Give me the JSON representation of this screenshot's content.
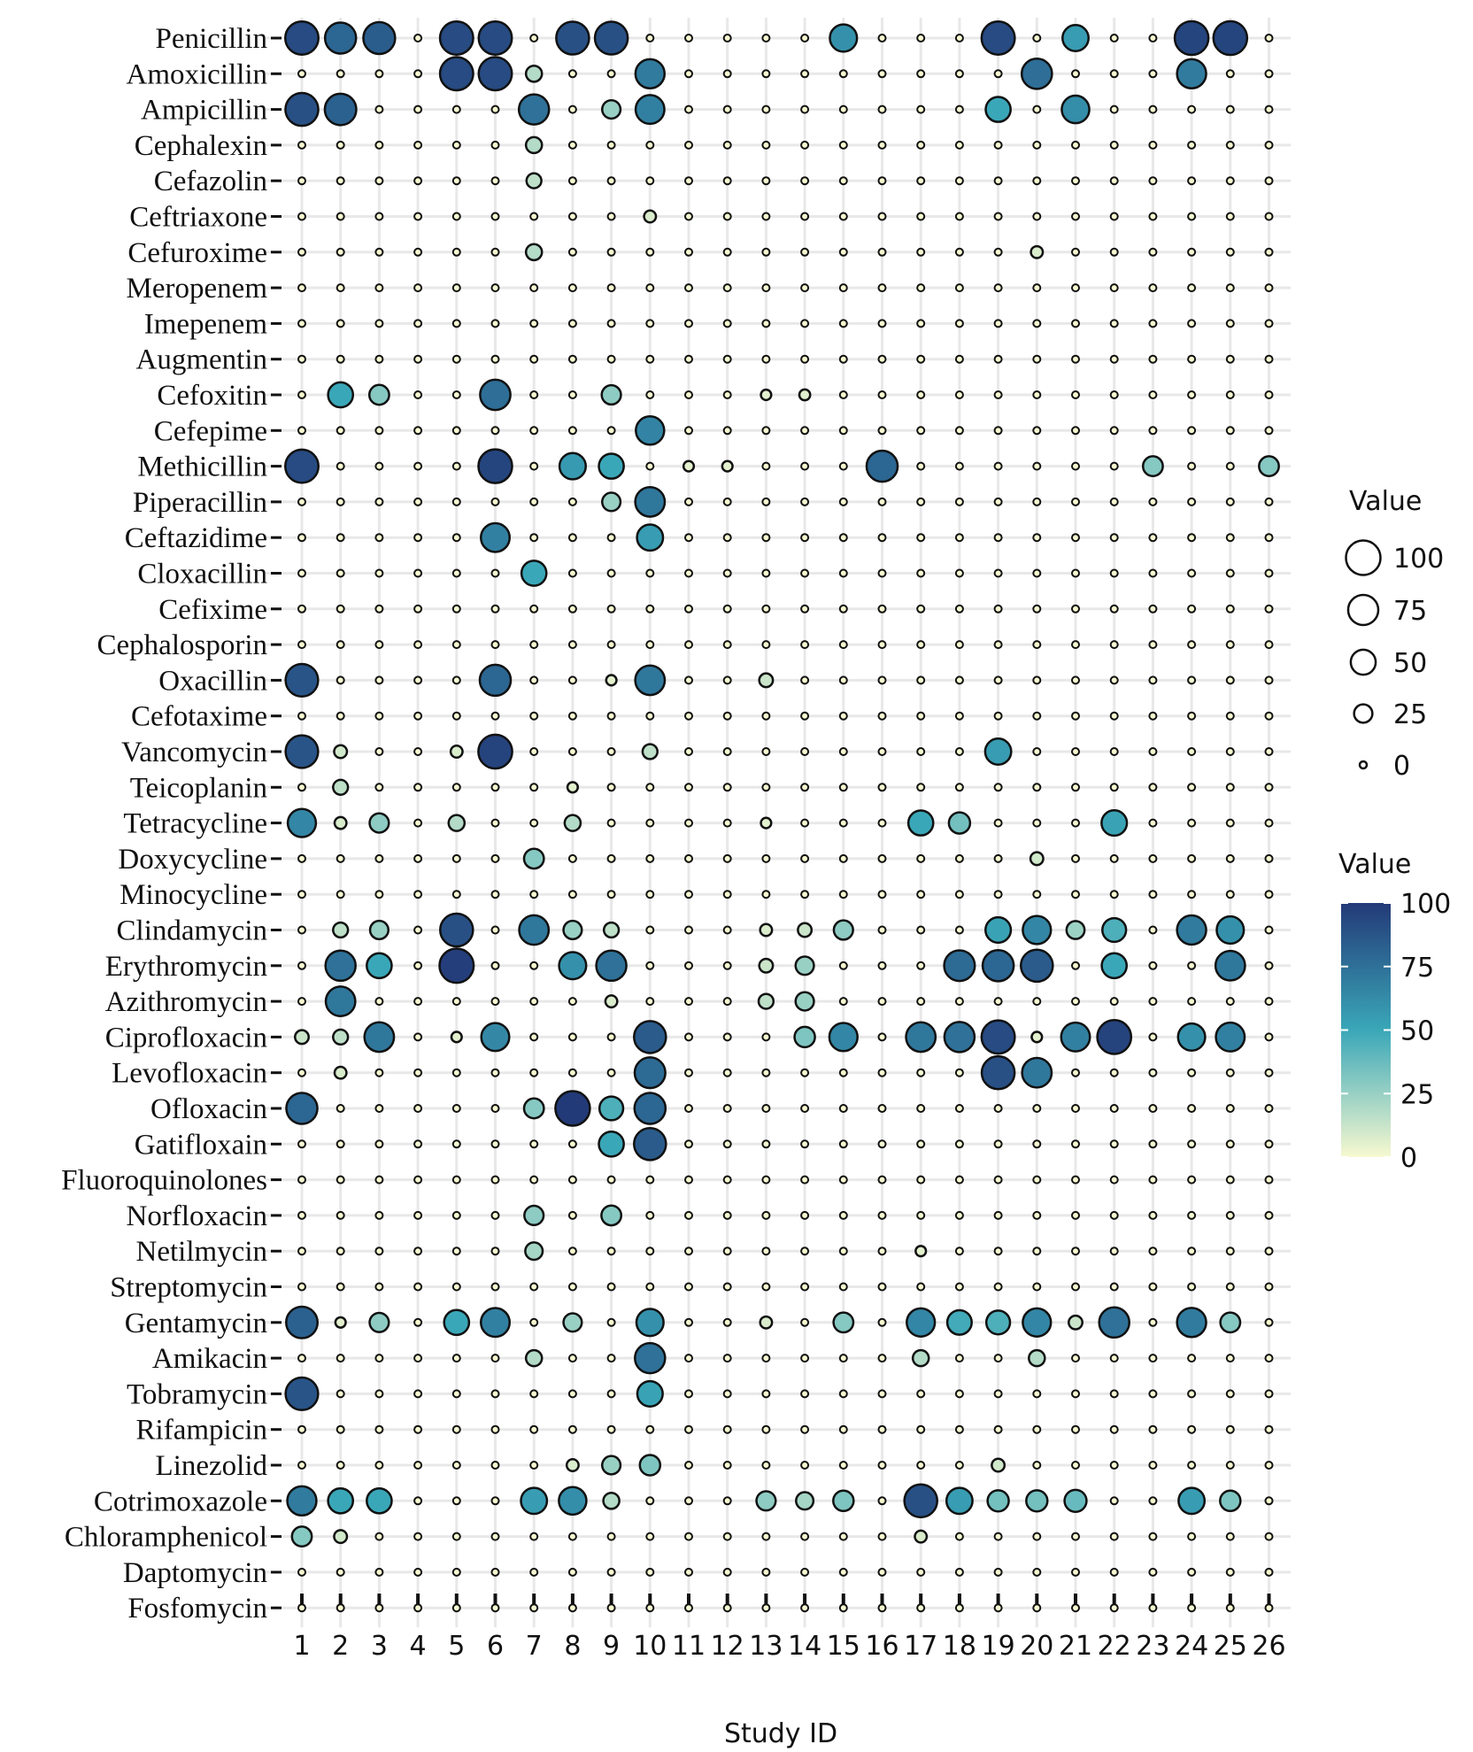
{
  "chart_data": {
    "type": "scatter",
    "subtype": "dot-matrix",
    "title": "",
    "xlabel": "Study ID",
    "ylabel": "",
    "x_categories": [
      "1",
      "2",
      "3",
      "4",
      "5",
      "6",
      "7",
      "8",
      "9",
      "10",
      "11",
      "12",
      "13",
      "14",
      "15",
      "16",
      "17",
      "18",
      "19",
      "20",
      "21",
      "22",
      "23",
      "24",
      "25",
      "26"
    ],
    "y_categories": [
      "Penicillin",
      "Amoxicillin",
      "Ampicillin",
      "Cephalexin",
      "Cefazolin",
      "Ceftriaxone",
      "Cefuroxime",
      "Meropenem",
      "Imepenem",
      "Augmentin",
      "Cefoxitin",
      "Cefepime",
      "Methicillin",
      "Piperacillin",
      "Ceftazidime",
      "Cloxacillin",
      "Cefixime",
      "Cephalosporin",
      "Oxacillin",
      "Cefotaxime",
      "Vancomycin",
      "Teicoplanin",
      "Tetracycline",
      "Doxycycline",
      "Minocycline",
      "Clindamycin",
      "Erythromycin",
      "Azithromycin",
      "Ciprofloxacin",
      "Levofloxacin",
      "Ofloxacin",
      "Gatifloxain",
      "Fluoroquinolones",
      "Norfloxacin",
      "Netilmycin",
      "Streptomycin",
      "Gentamycin",
      "Amikacin",
      "Tobramycin",
      "Rifampicin",
      "Linezolid",
      "Cotrimoxazole",
      "Chloramphenicol",
      "Daptomycin",
      "Fosfomycin"
    ],
    "values": [
      [
        92,
        80,
        84,
        0,
        92,
        92,
        0,
        90,
        90,
        0,
        0,
        0,
        0,
        0,
        60,
        0,
        0,
        0,
        92,
        0,
        55,
        0,
        0,
        95,
        95,
        0
      ],
      [
        0,
        0,
        0,
        0,
        92,
        92,
        18,
        0,
        0,
        70,
        0,
        0,
        0,
        0,
        0,
        0,
        0,
        0,
        0,
        76,
        0,
        0,
        0,
        70,
        0,
        0
      ],
      [
        90,
        82,
        0,
        0,
        0,
        0,
        75,
        0,
        25,
        68,
        0,
        0,
        0,
        0,
        0,
        0,
        0,
        0,
        50,
        0,
        62,
        0,
        0,
        0,
        0,
        0
      ],
      [
        0,
        0,
        0,
        0,
        0,
        0,
        18,
        0,
        0,
        0,
        0,
        0,
        0,
        0,
        0,
        0,
        0,
        0,
        0,
        0,
        0,
        0,
        0,
        0,
        0,
        0
      ],
      [
        0,
        0,
        0,
        0,
        0,
        0,
        15,
        0,
        0,
        0,
        0,
        0,
        0,
        0,
        0,
        0,
        0,
        0,
        0,
        0,
        0,
        0,
        0,
        0,
        0,
        0
      ],
      [
        0,
        0,
        0,
        0,
        0,
        0,
        0,
        0,
        0,
        8,
        0,
        0,
        0,
        0,
        0,
        0,
        0,
        0,
        0,
        0,
        0,
        0,
        0,
        0,
        0,
        0
      ],
      [
        0,
        0,
        0,
        0,
        0,
        0,
        18,
        0,
        0,
        0,
        0,
        0,
        0,
        0,
        0,
        0,
        0,
        0,
        0,
        8,
        0,
        0,
        0,
        0,
        0,
        0
      ],
      [
        0,
        0,
        0,
        0,
        0,
        0,
        0,
        0,
        0,
        0,
        0,
        0,
        0,
        0,
        0,
        0,
        0,
        0,
        0,
        0,
        0,
        0,
        0,
        0,
        0,
        0
      ],
      [
        0,
        0,
        0,
        0,
        0,
        0,
        0,
        0,
        0,
        0,
        0,
        0,
        0,
        0,
        0,
        0,
        0,
        0,
        0,
        0,
        0,
        0,
        0,
        0,
        0,
        0
      ],
      [
        0,
        0,
        0,
        0,
        0,
        0,
        0,
        0,
        0,
        0,
        0,
        0,
        0,
        0,
        0,
        0,
        0,
        0,
        0,
        0,
        0,
        0,
        0,
        0,
        0,
        0
      ],
      [
        0,
        50,
        30,
        0,
        0,
        76,
        0,
        0,
        28,
        0,
        0,
        0,
        5,
        6,
        0,
        0,
        0,
        0,
        0,
        0,
        0,
        0,
        0,
        0,
        0,
        0
      ],
      [
        0,
        0,
        0,
        0,
        0,
        0,
        0,
        0,
        0,
        66,
        0,
        0,
        0,
        0,
        0,
        0,
        0,
        0,
        0,
        0,
        0,
        0,
        0,
        0,
        0,
        0
      ],
      [
        92,
        0,
        0,
        0,
        0,
        95,
        0,
        56,
        50,
        0,
        5,
        5,
        0,
        0,
        0,
        80,
        0,
        0,
        0,
        0,
        0,
        0,
        30,
        0,
        0,
        30
      ],
      [
        0,
        0,
        0,
        0,
        0,
        0,
        0,
        0,
        25,
        72,
        0,
        0,
        0,
        0,
        0,
        0,
        0,
        0,
        0,
        0,
        0,
        0,
        0,
        0,
        0,
        0
      ],
      [
        0,
        0,
        0,
        0,
        0,
        68,
        0,
        0,
        0,
        55,
        0,
        0,
        0,
        0,
        0,
        0,
        0,
        0,
        0,
        0,
        0,
        0,
        0,
        0,
        0,
        0
      ],
      [
        0,
        0,
        0,
        0,
        0,
        0,
        50,
        0,
        0,
        0,
        0,
        0,
        0,
        0,
        0,
        0,
        0,
        0,
        0,
        0,
        0,
        0,
        0,
        0,
        0,
        0
      ],
      [
        0,
        0,
        0,
        0,
        0,
        0,
        0,
        0,
        0,
        0,
        0,
        0,
        0,
        0,
        0,
        0,
        0,
        0,
        0,
        0,
        0,
        0,
        0,
        0,
        0,
        0
      ],
      [
        0,
        0,
        0,
        0,
        0,
        0,
        0,
        0,
        0,
        0,
        0,
        0,
        0,
        0,
        0,
        0,
        0,
        0,
        0,
        0,
        0,
        0,
        0,
        0,
        0,
        0
      ],
      [
        88,
        0,
        0,
        0,
        0,
        80,
        0,
        0,
        5,
        72,
        0,
        0,
        12,
        0,
        0,
        0,
        0,
        0,
        0,
        0,
        0,
        0,
        0,
        0,
        0,
        0
      ],
      [
        0,
        0,
        0,
        0,
        0,
        0,
        0,
        0,
        0,
        0,
        0,
        0,
        0,
        0,
        0,
        0,
        0,
        0,
        0,
        0,
        0,
        0,
        0,
        0,
        0,
        0
      ],
      [
        88,
        10,
        0,
        0,
        8,
        96,
        0,
        0,
        0,
        15,
        0,
        0,
        0,
        0,
        0,
        0,
        0,
        0,
        55,
        0,
        0,
        0,
        0,
        0,
        0,
        0
      ],
      [
        0,
        15,
        0,
        0,
        0,
        0,
        0,
        5,
        0,
        0,
        0,
        0,
        0,
        0,
        0,
        0,
        0,
        0,
        0,
        0,
        0,
        0,
        0,
        0,
        0,
        0
      ],
      [
        65,
        8,
        28,
        0,
        18,
        0,
        0,
        18,
        0,
        0,
        0,
        0,
        5,
        0,
        0,
        0,
        50,
        35,
        0,
        0,
        0,
        52,
        0,
        0,
        0,
        0
      ],
      [
        0,
        0,
        0,
        0,
        0,
        0,
        30,
        0,
        0,
        0,
        0,
        0,
        0,
        0,
        0,
        0,
        0,
        0,
        0,
        10,
        0,
        0,
        0,
        0,
        0,
        0
      ],
      [
        0,
        0,
        0,
        0,
        0,
        0,
        0,
        0,
        0,
        0,
        0,
        0,
        0,
        0,
        0,
        0,
        0,
        0,
        0,
        0,
        0,
        0,
        0,
        0,
        0,
        0
      ],
      [
        0,
        15,
        25,
        0,
        90,
        0,
        72,
        25,
        15,
        0,
        0,
        0,
        8,
        12,
        28,
        0,
        0,
        0,
        52,
        65,
        24,
        45,
        0,
        70,
        60,
        0
      ],
      [
        0,
        75,
        50,
        0,
        98,
        0,
        0,
        60,
        75,
        0,
        0,
        0,
        12,
        25,
        0,
        0,
        0,
        78,
        80,
        85,
        0,
        50,
        0,
        0,
        72,
        0
      ],
      [
        0,
        72,
        0,
        0,
        0,
        0,
        0,
        0,
        8,
        0,
        0,
        0,
        15,
        25,
        0,
        0,
        0,
        0,
        0,
        0,
        0,
        0,
        0,
        0,
        0,
        0
      ],
      [
        12,
        15,
        72,
        0,
        5,
        64,
        0,
        0,
        0,
        85,
        0,
        0,
        0,
        32,
        65,
        0,
        72,
        75,
        92,
        5,
        68,
        96,
        0,
        60,
        68,
        0
      ],
      [
        0,
        8,
        0,
        0,
        0,
        0,
        0,
        0,
        0,
        78,
        0,
        0,
        0,
        0,
        0,
        0,
        0,
        0,
        90,
        72,
        0,
        0,
        0,
        0,
        0,
        0
      ],
      [
        80,
        0,
        0,
        0,
        0,
        0,
        30,
        100,
        45,
        80,
        0,
        0,
        0,
        0,
        0,
        0,
        0,
        0,
        0,
        0,
        0,
        0,
        0,
        0,
        0,
        0
      ],
      [
        0,
        0,
        0,
        0,
        0,
        0,
        0,
        0,
        50,
        85,
        0,
        0,
        0,
        0,
        0,
        0,
        0,
        0,
        0,
        0,
        0,
        0,
        0,
        0,
        0,
        0
      ],
      [
        0,
        0,
        0,
        0,
        0,
        0,
        0,
        0,
        0,
        0,
        0,
        0,
        0,
        0,
        0,
        0,
        0,
        0,
        0,
        0,
        0,
        0,
        0,
        0,
        0,
        0
      ],
      [
        0,
        0,
        0,
        0,
        0,
        0,
        28,
        0,
        30,
        0,
        0,
        0,
        0,
        0,
        0,
        0,
        0,
        0,
        0,
        0,
        0,
        0,
        0,
        0,
        0,
        0
      ],
      [
        0,
        0,
        0,
        0,
        0,
        0,
        22,
        0,
        0,
        0,
        0,
        0,
        0,
        0,
        0,
        0,
        5,
        0,
        0,
        0,
        0,
        0,
        0,
        0,
        0,
        0
      ],
      [
        0,
        0,
        0,
        0,
        0,
        0,
        0,
        0,
        0,
        0,
        0,
        0,
        0,
        0,
        0,
        0,
        0,
        0,
        0,
        0,
        0,
        0,
        0,
        0,
        0,
        0
      ],
      [
        82,
        5,
        28,
        0,
        50,
        68,
        0,
        25,
        0,
        60,
        0,
        0,
        8,
        0,
        30,
        0,
        65,
        48,
        45,
        65,
        12,
        75,
        0,
        70,
        30,
        0
      ],
      [
        0,
        0,
        0,
        0,
        0,
        0,
        18,
        0,
        0,
        75,
        0,
        0,
        0,
        0,
        0,
        0,
        18,
        0,
        0,
        18,
        0,
        0,
        0,
        0,
        0,
        0
      ],
      [
        88,
        0,
        0,
        0,
        0,
        0,
        0,
        0,
        0,
        52,
        0,
        0,
        0,
        0,
        0,
        0,
        0,
        0,
        0,
        0,
        0,
        0,
        0,
        0,
        0,
        0
      ],
      [
        0,
        0,
        0,
        0,
        0,
        0,
        0,
        0,
        0,
        0,
        0,
        0,
        0,
        0,
        0,
        0,
        0,
        0,
        0,
        0,
        0,
        0,
        0,
        0,
        0,
        0
      ],
      [
        0,
        0,
        0,
        0,
        0,
        0,
        0,
        8,
        25,
        32,
        0,
        0,
        0,
        0,
        0,
        0,
        0,
        0,
        10,
        0,
        0,
        0,
        0,
        0,
        0,
        0
      ],
      [
        70,
        50,
        50,
        0,
        0,
        0,
        55,
        62,
        18,
        0,
        0,
        0,
        28,
        22,
        32,
        0,
        90,
        55,
        35,
        35,
        38,
        0,
        0,
        55,
        32,
        0
      ],
      [
        30,
        10,
        0,
        0,
        0,
        0,
        0,
        0,
        0,
        0,
        0,
        0,
        0,
        0,
        0,
        0,
        8,
        0,
        0,
        0,
        0,
        0,
        0,
        0,
        0,
        0
      ],
      [
        0,
        0,
        0,
        0,
        0,
        0,
        0,
        0,
        0,
        0,
        0,
        0,
        0,
        0,
        0,
        0,
        0,
        0,
        0,
        0,
        0,
        0,
        0,
        0,
        0,
        0
      ],
      [
        0,
        0,
        0,
        0,
        0,
        0,
        0,
        0,
        0,
        0,
        0,
        0,
        0,
        0,
        0,
        0,
        0,
        0,
        0,
        0,
        0,
        0,
        0,
        0,
        0,
        0
      ]
    ],
    "value_range": [
      0,
      100
    ],
    "size_legend": {
      "title": "Value",
      "breaks": [
        "100",
        "75",
        "50",
        "25",
        "0"
      ]
    },
    "color_legend": {
      "title": "Value",
      "breaks": [
        "100",
        "75",
        "50",
        "25",
        "0"
      ],
      "low_color": "#f7f9d0",
      "mid_color": "#3aa7b8",
      "high_color": "#233a78"
    },
    "grid": true,
    "grid_color": "#e8e8e8",
    "point_stroke": "#111111"
  }
}
